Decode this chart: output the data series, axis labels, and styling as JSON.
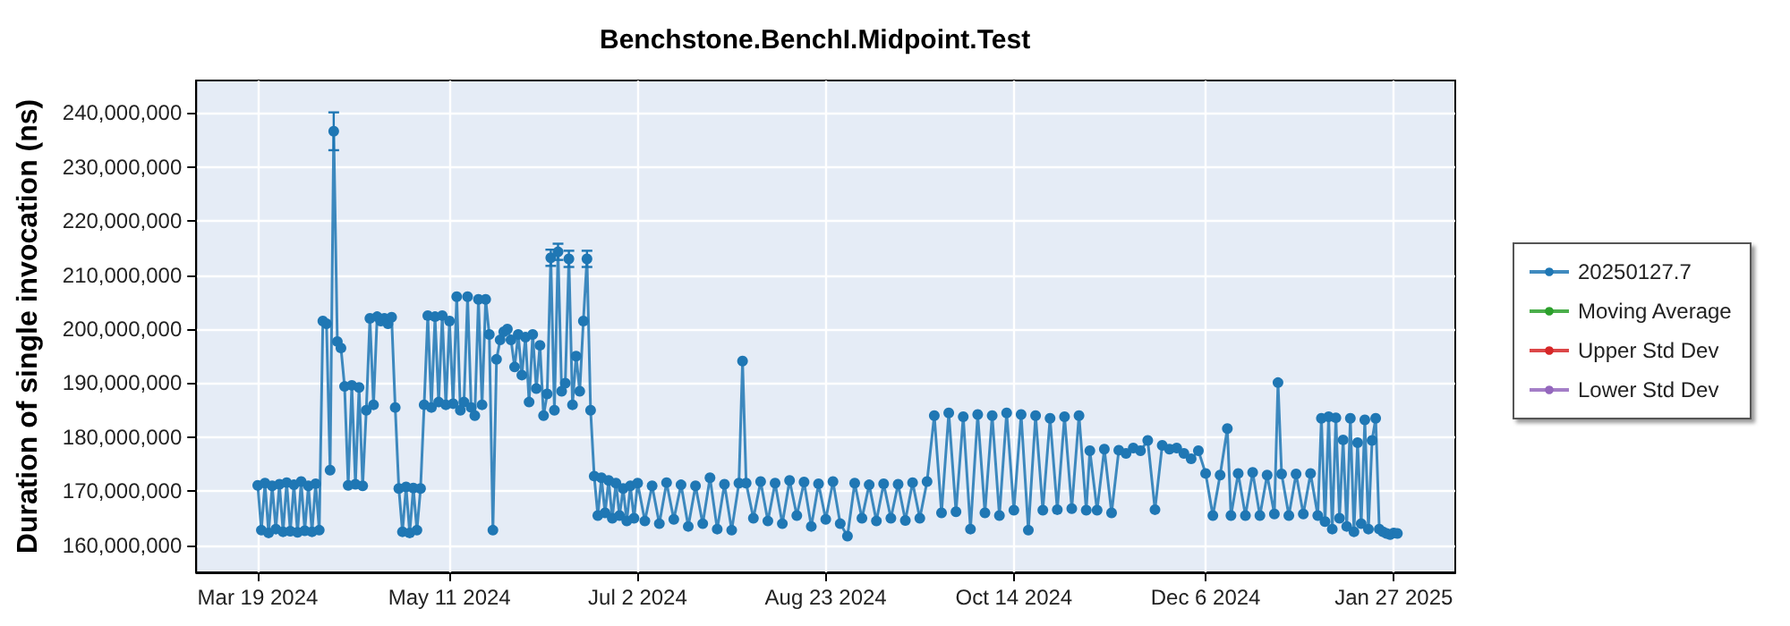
{
  "chart_data": {
    "type": "line",
    "title": "Benchstone.BenchI.Midpoint.Test",
    "ylabel": "Duration of single invocation (ns)",
    "xlim": [
      "2024-03-02",
      "2025-02-13"
    ],
    "xticks": [
      {
        "value": "2024-03-19",
        "label": "Mar 19 2024"
      },
      {
        "value": "2024-05-11",
        "label": "May 11 2024"
      },
      {
        "value": "2024-07-02",
        "label": "Jul 2 2024"
      },
      {
        "value": "2024-08-23",
        "label": "Aug 23 2024"
      },
      {
        "value": "2024-10-14",
        "label": "Oct 14 2024"
      },
      {
        "value": "2024-12-06",
        "label": "Dec 6 2024"
      },
      {
        "value": "2025-01-27",
        "label": "Jan 27 2025"
      }
    ],
    "ylim": [
      155000000,
      246000000
    ],
    "yticks": [
      {
        "value": 160000000,
        "label": "160,000,000"
      },
      {
        "value": 170000000,
        "label": "170,000,000"
      },
      {
        "value": 180000000,
        "label": "180,000,000"
      },
      {
        "value": 190000000,
        "label": "190,000,000"
      },
      {
        "value": 200000000,
        "label": "200,000,000"
      },
      {
        "value": 210000000,
        "label": "210,000,000"
      },
      {
        "value": 220000000,
        "label": "220,000,000"
      },
      {
        "value": 230000000,
        "label": "230,000,000"
      },
      {
        "value": 240000000,
        "label": "240,000,000"
      }
    ],
    "grid": true,
    "legend": "right",
    "marker": "circle",
    "series": [
      {
        "name": "20250127.7",
        "color": "#1f77b4",
        "x": [
          "2024-03-19",
          "2024-03-20",
          "2024-03-21",
          "2024-03-22",
          "2024-03-23",
          "2024-03-24",
          "2024-03-25",
          "2024-03-26",
          "2024-03-27",
          "2024-03-28",
          "2024-03-29",
          "2024-03-30",
          "2024-03-31",
          "2024-04-01",
          "2024-04-02",
          "2024-04-03",
          "2024-04-04",
          "2024-04-05",
          "2024-04-06",
          "2024-04-07",
          "2024-04-08",
          "2024-04-09",
          "2024-04-10",
          "2024-04-11",
          "2024-04-12",
          "2024-04-13",
          "2024-04-14",
          "2024-04-15",
          "2024-04-16",
          "2024-04-17",
          "2024-04-18",
          "2024-04-19",
          "2024-04-20",
          "2024-04-21",
          "2024-04-22",
          "2024-04-23",
          "2024-04-24",
          "2024-04-25",
          "2024-04-26",
          "2024-04-27",
          "2024-04-28",
          "2024-04-29",
          "2024-04-30",
          "2024-05-01",
          "2024-05-02",
          "2024-05-03",
          "2024-05-04",
          "2024-05-05",
          "2024-05-06",
          "2024-05-07",
          "2024-05-08",
          "2024-05-09",
          "2024-05-10",
          "2024-05-11",
          "2024-05-12",
          "2024-05-13",
          "2024-05-14",
          "2024-05-15",
          "2024-05-16",
          "2024-05-17",
          "2024-05-18",
          "2024-05-19",
          "2024-05-20",
          "2024-05-21",
          "2024-05-22",
          "2024-05-23",
          "2024-05-24",
          "2024-05-25",
          "2024-05-26",
          "2024-05-27",
          "2024-05-28",
          "2024-05-29",
          "2024-05-30",
          "2024-05-31",
          "2024-06-01",
          "2024-06-02",
          "2024-06-03",
          "2024-06-04",
          "2024-06-05",
          "2024-06-06",
          "2024-06-07",
          "2024-06-08",
          "2024-06-09",
          "2024-06-10",
          "2024-06-11",
          "2024-06-12",
          "2024-06-13",
          "2024-06-14",
          "2024-06-15",
          "2024-06-16",
          "2024-06-17",
          "2024-06-18",
          "2024-06-19",
          "2024-06-20",
          "2024-06-21",
          "2024-06-22",
          "2024-06-23",
          "2024-06-24",
          "2024-06-25",
          "2024-06-26",
          "2024-06-27",
          "2024-06-28",
          "2024-06-29",
          "2024-06-30",
          "2024-07-01",
          "2024-07-02",
          "2024-07-04",
          "2024-07-06",
          "2024-07-08",
          "2024-07-10",
          "2024-07-12",
          "2024-07-14",
          "2024-07-16",
          "2024-07-18",
          "2024-07-20",
          "2024-07-22",
          "2024-07-24",
          "2024-07-26",
          "2024-07-28",
          "2024-07-30",
          "2024-07-31",
          "2024-08-01",
          "2024-08-03",
          "2024-08-05",
          "2024-08-07",
          "2024-08-09",
          "2024-08-11",
          "2024-08-13",
          "2024-08-15",
          "2024-08-17",
          "2024-08-19",
          "2024-08-21",
          "2024-08-23",
          "2024-08-25",
          "2024-08-27",
          "2024-08-29",
          "2024-08-31",
          "2024-09-02",
          "2024-09-04",
          "2024-09-06",
          "2024-09-08",
          "2024-09-10",
          "2024-09-12",
          "2024-09-14",
          "2024-09-16",
          "2024-09-18",
          "2024-09-20",
          "2024-09-22",
          "2024-09-24",
          "2024-09-26",
          "2024-09-28",
          "2024-09-30",
          "2024-10-02",
          "2024-10-04",
          "2024-10-06",
          "2024-10-08",
          "2024-10-10",
          "2024-10-12",
          "2024-10-14",
          "2024-10-16",
          "2024-10-18",
          "2024-10-20",
          "2024-10-22",
          "2024-10-24",
          "2024-10-26",
          "2024-10-28",
          "2024-10-30",
          "2024-11-01",
          "2024-11-03",
          "2024-11-04",
          "2024-11-06",
          "2024-11-08",
          "2024-11-10",
          "2024-11-12",
          "2024-11-14",
          "2024-11-16",
          "2024-11-18",
          "2024-11-20",
          "2024-11-22",
          "2024-11-24",
          "2024-11-26",
          "2024-11-28",
          "2024-11-30",
          "2024-12-02",
          "2024-12-04",
          "2024-12-06",
          "2024-12-08",
          "2024-12-10",
          "2024-12-12",
          "2024-12-13",
          "2024-12-15",
          "2024-12-17",
          "2024-12-19",
          "2024-12-21",
          "2024-12-23",
          "2024-12-25",
          "2024-12-26",
          "2024-12-27",
          "2024-12-29",
          "2024-12-31",
          "2025-01-02",
          "2025-01-04",
          "2025-01-06",
          "2025-01-07",
          "2025-01-08",
          "2025-01-09",
          "2025-01-10",
          "2025-01-11",
          "2025-01-12",
          "2025-01-13",
          "2025-01-14",
          "2025-01-15",
          "2025-01-16",
          "2025-01-17",
          "2025-01-18",
          "2025-01-19",
          "2025-01-20",
          "2025-01-21",
          "2025-01-22",
          "2025-01-23",
          "2025-01-24",
          "2025-01-25",
          "2025-01-26",
          "2025-01-27",
          "2025-01-28"
        ],
        "values": [
          171100000,
          162800000,
          171500000,
          162300000,
          171000000,
          163000000,
          171300000,
          162500000,
          171600000,
          162600000,
          171200000,
          162400000,
          171800000,
          162700000,
          171000000,
          162500000,
          171400000,
          162800000,
          201500000,
          201000000,
          173900000,
          236600000,
          197700000,
          196500000,
          189400000,
          171100000,
          189600000,
          171300000,
          189200000,
          171000000,
          185000000,
          202000000,
          186000000,
          202300000,
          201500000,
          202000000,
          201000000,
          202200000,
          185500000,
          170500000,
          162500000,
          170800000,
          162300000,
          170600000,
          162800000,
          170500000,
          186000000,
          202500000,
          185500000,
          202300000,
          186500000,
          202500000,
          186000000,
          201500000,
          186200000,
          206000000,
          185000000,
          186500000,
          206000000,
          185500000,
          184000000,
          205500000,
          186000000,
          205500000,
          199000000,
          162800000,
          194400000,
          198000000,
          199500000,
          200000000,
          198000000,
          193000000,
          199000000,
          191500000,
          198500000,
          186500000,
          199000000,
          189000000,
          197000000,
          184000000,
          188000000,
          213200000,
          185000000,
          214300000,
          188500000,
          190000000,
          213000000,
          186000000,
          195000000,
          188500000,
          201500000,
          213000000,
          185000000,
          172800000,
          165500000,
          172500000,
          166000000,
          172000000,
          165000000,
          171500000,
          165500000,
          170500000,
          164500000,
          171000000,
          165000000,
          171500000,
          164500000,
          171000000,
          164000000,
          171600000,
          164800000,
          171200000,
          163500000,
          171000000,
          164000000,
          172500000,
          163000000,
          171300000,
          162800000,
          171500000,
          194100000,
          171500000,
          165000000,
          171800000,
          164500000,
          171500000,
          164000000,
          172000000,
          165500000,
          171700000,
          163500000,
          171400000,
          164800000,
          171800000,
          164000000,
          161700000,
          171500000,
          165000000,
          171200000,
          164500000,
          171400000,
          165000000,
          171300000,
          164600000,
          171600000,
          165000000,
          171800000,
          184000000,
          166000000,
          184500000,
          166200000,
          183800000,
          163000000,
          184200000,
          166000000,
          184000000,
          165500000,
          184500000,
          166500000,
          184200000,
          162800000,
          184000000,
          166500000,
          183500000,
          166600000,
          183800000,
          166800000,
          184000000,
          166500000,
          177500000,
          166500000,
          177800000,
          166000000,
          177600000,
          177000000,
          178000000,
          177500000,
          179400000,
          166600000,
          178500000,
          177800000,
          178000000,
          177000000,
          176000000,
          177500000,
          173300000,
          165500000,
          173000000,
          181600000,
          165500000,
          173300000,
          165500000,
          173500000,
          165500000,
          173000000,
          165800000,
          190100000,
          173200000,
          165500000,
          173200000,
          165800000,
          173300000,
          165500000,
          183500000,
          164400000,
          183800000,
          163000000,
          183600000,
          165000000,
          179500000,
          163500000,
          183500000,
          162500000,
          179000000,
          164000000,
          183200000,
          163000000,
          179400000,
          183500000,
          163000000,
          162500000,
          162200000,
          162000000,
          162300000,
          162200000
        ],
        "errors": [
          null,
          null,
          null,
          null,
          null,
          null,
          null,
          null,
          null,
          null,
          null,
          null,
          null,
          null,
          null,
          null,
          null,
          null,
          null,
          null,
          null,
          3500000,
          null,
          null,
          null,
          null,
          null,
          null,
          null,
          null,
          null,
          null,
          null,
          null,
          null,
          null,
          null,
          null,
          null,
          null,
          null,
          null,
          null,
          null,
          null,
          null,
          null,
          null,
          null,
          null,
          null,
          null,
          null,
          null,
          null,
          null,
          null,
          null,
          null,
          null,
          null,
          null,
          null,
          null,
          null,
          null,
          null,
          null,
          null,
          null,
          null,
          null,
          null,
          null,
          null,
          null,
          null,
          null,
          null,
          null,
          null,
          1500000,
          null,
          1500000,
          null,
          null,
          1500000,
          null,
          null,
          null,
          null,
          1500000,
          null,
          null,
          null,
          null,
          null,
          null,
          null,
          null,
          null,
          null,
          null,
          null,
          null,
          null,
          null,
          null,
          null,
          null,
          null,
          null,
          null,
          null,
          null,
          null,
          null,
          null,
          null,
          null,
          null,
          null,
          null,
          null,
          null,
          null,
          null,
          null,
          null,
          null,
          null,
          null,
          null,
          null,
          null,
          null,
          null,
          null,
          null,
          null,
          null,
          null,
          null,
          null,
          null,
          null,
          null,
          null,
          null,
          null,
          null,
          null,
          null,
          null,
          null,
          null,
          null,
          null,
          null,
          null,
          null,
          null,
          null,
          null,
          null,
          null,
          null,
          null,
          null,
          null,
          null,
          null,
          null,
          null,
          null,
          null,
          null,
          null,
          null,
          null,
          null,
          null,
          null,
          null,
          null,
          null,
          null,
          null,
          null,
          null,
          null,
          null,
          null,
          null,
          null,
          null,
          null,
          null,
          null,
          null,
          null,
          null,
          null,
          null,
          null,
          null,
          null,
          null,
          null,
          null,
          null,
          null,
          null,
          null,
          null,
          null,
          null,
          null,
          null,
          null,
          null,
          null,
          null,
          null,
          null
        ]
      },
      {
        "name": "Moving Average",
        "color": "#2ca02c"
      },
      {
        "name": "Upper Std Dev",
        "color": "#d62728"
      },
      {
        "name": "Lower Std Dev",
        "color": "#9467bd"
      }
    ]
  }
}
